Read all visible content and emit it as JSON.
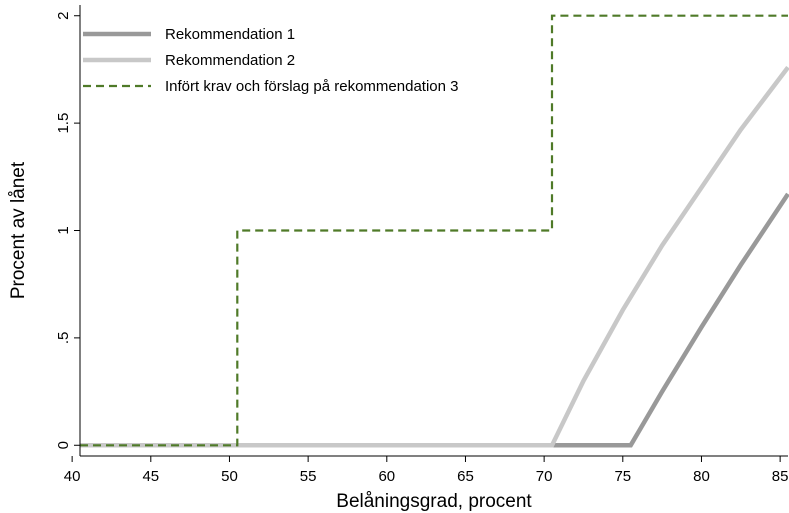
{
  "chart_data": {
    "type": "line",
    "title": "",
    "xlabel": "Belåningsgrad, procent",
    "ylabel": "Procent av lånet",
    "xlim": [
      40.5,
      85.5
    ],
    "ylim": [
      -0.05,
      2.05
    ],
    "x_ticks": [
      40,
      45,
      50,
      55,
      60,
      65,
      70,
      75,
      80,
      85
    ],
    "y_ticks": [
      0,
      0.5,
      1,
      1.5,
      2
    ],
    "y_tick_labels": [
      "0",
      ".5",
      "1",
      "1.5",
      "2"
    ],
    "grid": false,
    "legend_position": "top-left",
    "series": [
      {
        "name": "Rekommendation 1",
        "color": "#999999",
        "style": "solid",
        "points": [
          [
            40.5,
            0
          ],
          [
            75.5,
            0
          ],
          [
            77.5,
            0.25
          ],
          [
            80,
            0.55
          ],
          [
            82.5,
            0.84
          ],
          [
            85.5,
            1.17
          ]
        ]
      },
      {
        "name": "Rekommendation 2",
        "color": "#c8c8c8",
        "style": "solid",
        "points": [
          [
            40.5,
            0
          ],
          [
            70.5,
            0
          ],
          [
            72.5,
            0.3
          ],
          [
            75,
            0.63
          ],
          [
            77.5,
            0.93
          ],
          [
            80,
            1.2
          ],
          [
            82.5,
            1.47
          ],
          [
            85.5,
            1.76
          ]
        ]
      },
      {
        "name": "Infört krav och förslag på rekommendation 3",
        "color": "#4f7a28",
        "style": "dashed",
        "points": [
          [
            40.5,
            0
          ],
          [
            50.5,
            0
          ],
          [
            50.5,
            1
          ],
          [
            70.5,
            1
          ],
          [
            70.5,
            2
          ],
          [
            85.5,
            2
          ]
        ]
      }
    ]
  }
}
